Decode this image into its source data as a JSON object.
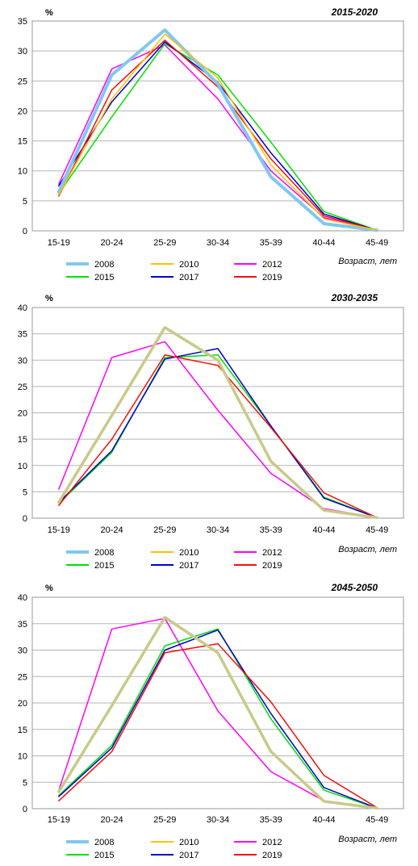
{
  "chart_data": [
    {
      "type": "line",
      "title": "2015-2020",
      "ylabel": "%",
      "xlabel": "Возраст, лет",
      "categories": [
        "15-19",
        "20-24",
        "25-29",
        "30-34",
        "35-39",
        "40-44",
        "45-49"
      ],
      "ylim": [
        0,
        35
      ],
      "yticks": [
        0,
        5,
        10,
        15,
        20,
        25,
        30,
        35
      ],
      "grid": true,
      "legend": "bottom",
      "series": [
        {
          "name": "2008",
          "color": "#7fc8f0",
          "values": [
            6.5,
            26.0,
            33.5,
            24.5,
            9.0,
            1.2,
            0.1
          ]
        },
        {
          "name": "2010",
          "color": "#ffc000",
          "values": [
            6.0,
            22.0,
            32.8,
            25.5,
            11.0,
            2.0,
            0.1
          ]
        },
        {
          "name": "2012",
          "color": "#ff00ff",
          "values": [
            7.8,
            27.0,
            31.0,
            22.0,
            10.0,
            2.2,
            0.1
          ]
        },
        {
          "name": "2015",
          "color": "#00e000",
          "values": [
            6.2,
            19.0,
            31.2,
            26.0,
            14.8,
            3.2,
            0.1
          ]
        },
        {
          "name": "2017",
          "color": "#0000cc",
          "values": [
            7.5,
            21.5,
            31.5,
            24.8,
            13.0,
            2.8,
            0.1
          ]
        },
        {
          "name": "2019",
          "color": "#ee1111",
          "values": [
            5.8,
            23.5,
            31.8,
            24.0,
            12.0,
            2.5,
            0.1
          ]
        }
      ]
    },
    {
      "type": "line",
      "title": "2030-2035",
      "ylabel": "%",
      "xlabel": "Возраст, лет",
      "categories": [
        "15-19",
        "20-24",
        "25-29",
        "30-34",
        "35-39",
        "40-44",
        "45-49"
      ],
      "ylim": [
        0,
        40
      ],
      "yticks": [
        0,
        5,
        10,
        15,
        20,
        25,
        30,
        35,
        40
      ],
      "grid": true,
      "legend": "bottom",
      "series": [
        {
          "name": "2008",
          "color": "#7fc8f0",
          "values": [
            3.0,
            19.5,
            36.2,
            30.0,
            10.8,
            1.5,
            0.1
          ]
        },
        {
          "name": "2010",
          "color": "#ffc000",
          "values": [
            3.0,
            19.5,
            36.2,
            30.0,
            10.8,
            1.5,
            0.1
          ]
        },
        {
          "name": "2012",
          "color": "#ff00ff",
          "values": [
            5.5,
            30.5,
            33.5,
            20.5,
            8.5,
            1.8,
            0.1
          ]
        },
        {
          "name": "2015",
          "color": "#00e000",
          "values": [
            2.8,
            12.5,
            30.5,
            31.0,
            17.5,
            4.0,
            0.1
          ]
        },
        {
          "name": "2017",
          "color": "#0000cc",
          "values": [
            3.0,
            12.8,
            30.2,
            32.2,
            17.5,
            3.8,
            0.1
          ]
        },
        {
          "name": "2019",
          "color": "#ee1111",
          "values": [
            2.4,
            15.0,
            31.0,
            29.0,
            17.2,
            4.8,
            0.1
          ]
        }
      ]
    },
    {
      "type": "line",
      "title": "2045-2050",
      "ylabel": "%",
      "xlabel": "Возраст, лет",
      "categories": [
        "15-19",
        "20-24",
        "25-29",
        "30-34",
        "35-39",
        "40-44",
        "45-49"
      ],
      "ylim": [
        0,
        40
      ],
      "yticks": [
        0,
        5,
        10,
        15,
        20,
        25,
        30,
        35,
        40
      ],
      "grid": true,
      "legend": "bottom",
      "series": [
        {
          "name": "2008",
          "color": "#7fc8f0",
          "values": [
            3.2,
            19.5,
            36.2,
            29.5,
            10.8,
            1.4,
            0.1
          ]
        },
        {
          "name": "2010",
          "color": "#ffc000",
          "values": [
            3.2,
            19.5,
            36.2,
            29.5,
            10.8,
            1.4,
            0.1
          ]
        },
        {
          "name": "2012",
          "color": "#ff00ff",
          "values": [
            3.5,
            34.0,
            36.0,
            18.5,
            7.0,
            1.5,
            0.1
          ]
        },
        {
          "name": "2015",
          "color": "#00e000",
          "values": [
            2.5,
            12.0,
            30.8,
            34.0,
            17.0,
            3.5,
            0.1
          ]
        },
        {
          "name": "2017",
          "color": "#0000cc",
          "values": [
            2.3,
            11.5,
            30.0,
            33.8,
            18.0,
            4.0,
            0.1
          ]
        },
        {
          "name": "2019",
          "color": "#ee1111",
          "values": [
            1.5,
            10.8,
            29.5,
            31.2,
            20.2,
            6.3,
            0.2
          ]
        }
      ]
    }
  ],
  "overlay_color": "#c9c98a"
}
